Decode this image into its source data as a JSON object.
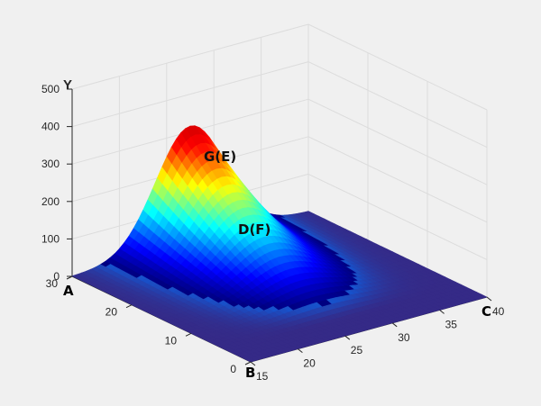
{
  "chart_data": {
    "type": "surface",
    "title": "",
    "y_axis": {
      "label": "Y",
      "ticks": [
        "0",
        "100",
        "200",
        "300",
        "400",
        "500"
      ],
      "range": [
        0,
        500
      ]
    },
    "left_axis": {
      "ticks": [
        "0",
        "10",
        "20",
        "30"
      ],
      "range": [
        0,
        30
      ]
    },
    "right_axis": {
      "ticks": [
        "15",
        "20",
        "25",
        "30",
        "35",
        "40"
      ],
      "range": [
        15,
        40
      ]
    },
    "corner_labels": {
      "A": "A",
      "B": "B",
      "C": "C"
    },
    "annotations": [
      {
        "text": "G(E)"
      },
      {
        "text": "D(F)"
      }
    ],
    "peak_value": 315,
    "colormap": [
      "#352a87",
      "#0f5cdd",
      "#1481d6",
      "#06a4ca",
      "#2eb7a4",
      "#87bf77",
      "#d1bb59",
      "#fec832",
      "#f9fb0e"
    ],
    "grid": true
  }
}
